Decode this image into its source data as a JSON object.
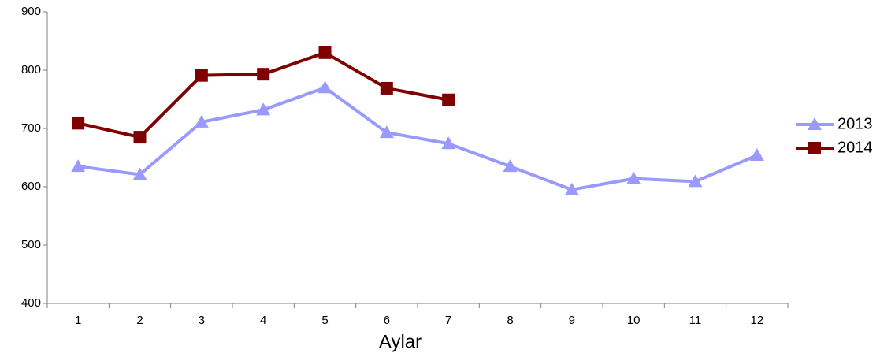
{
  "chart_data": {
    "type": "line",
    "x_label": "Aylar",
    "categories": [
      "1",
      "2",
      "3",
      "4",
      "5",
      "6",
      "7",
      "8",
      "9",
      "10",
      "11",
      "12"
    ],
    "series": [
      {
        "name": "2013",
        "color": "#9999ff",
        "marker": "triangle",
        "values": [
          635,
          621,
          711,
          732,
          770,
          693,
          674,
          635,
          595,
          614,
          609,
          654
        ]
      },
      {
        "name": "2014",
        "color": "#800000",
        "marker": "square",
        "values": [
          709,
          685,
          791,
          793,
          830,
          769,
          749,
          null,
          null,
          null,
          null,
          null
        ]
      }
    ],
    "ylim": [
      400,
      900
    ],
    "yticks": [
      400,
      500,
      600,
      700,
      800,
      900
    ],
    "grid": false,
    "legend": "right"
  }
}
